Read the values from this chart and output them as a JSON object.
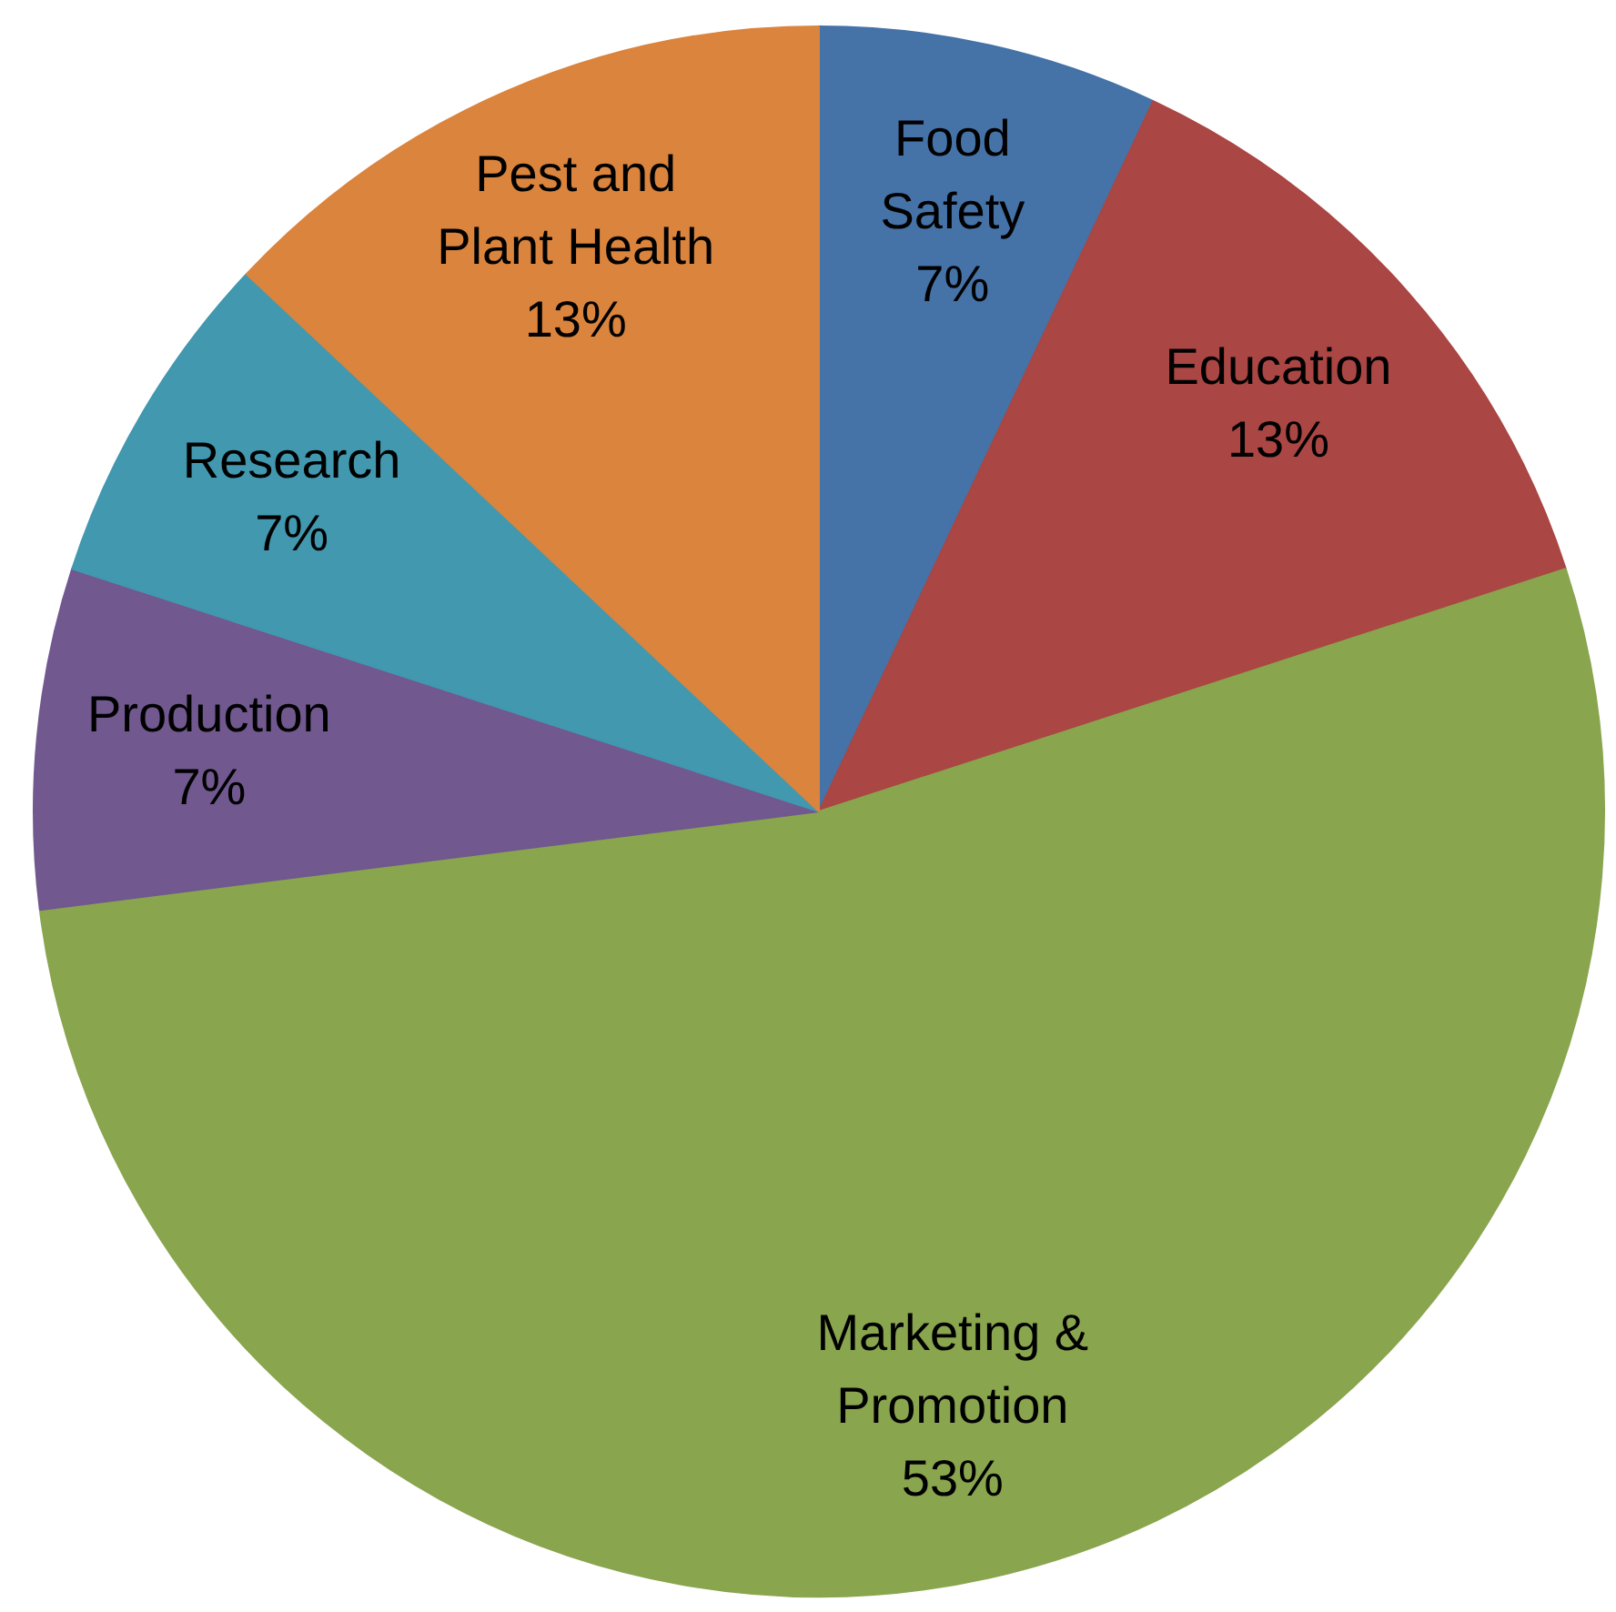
{
  "chart_data": {
    "type": "pie",
    "categories": [
      "Food Safety",
      "Education",
      "Marketing & Promotion",
      "Production",
      "Research",
      "Pest and Plant Health"
    ],
    "values": [
      7,
      13,
      53,
      7,
      7,
      13
    ],
    "colors": [
      "#4572a7",
      "#aa4643",
      "#89a54e",
      "#71588f",
      "#4198af",
      "#db843d"
    ],
    "value_labels": [
      "7%",
      "13%",
      "53%",
      "7%",
      "7%",
      "13%"
    ],
    "legend": false
  }
}
